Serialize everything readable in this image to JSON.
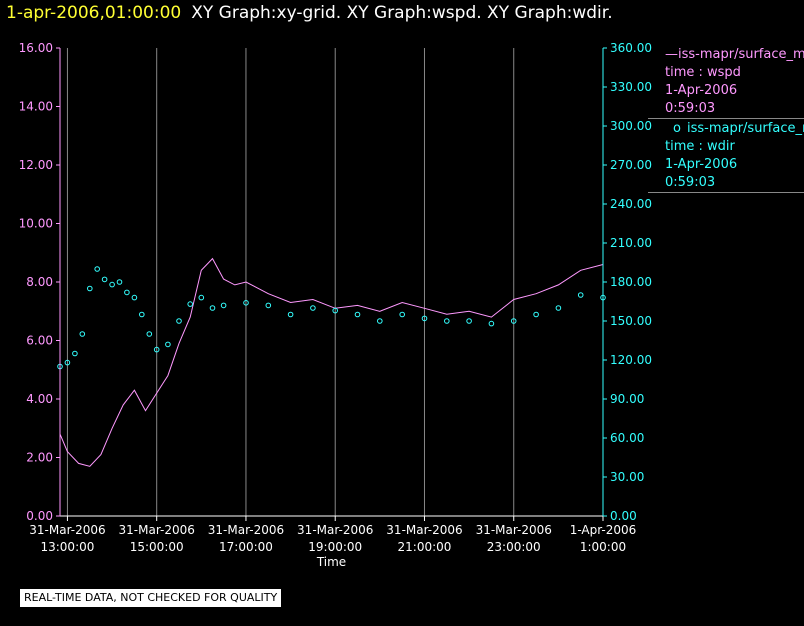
{
  "header": {
    "time": "1-apr-2006,01:00:00",
    "graphs": "XY Graph:xy-grid.  XY Graph:wspd.  XY Graph:wdir."
  },
  "legend": {
    "wspd": {
      "marker": "—",
      "name": "iss-mapr/surface_mapr",
      "line2": "time : wspd",
      "line3": "1-Apr-2006",
      "line4": "0:59:03"
    },
    "wdir": {
      "marker": "o",
      "name": "iss-mapr/surface_mapr",
      "line2": "time : wdir",
      "line3": "1-Apr-2006",
      "line4": "0:59:03"
    }
  },
  "disclaimer": "REAL-TIME DATA, NOT CHECKED FOR QUALITY",
  "colors": {
    "background": "#000000",
    "wspd": "#ff99ff",
    "wdir": "#33ffff",
    "grid": "#888888",
    "title_time": "#ffff33",
    "axis_text": "#ffffff"
  },
  "chart_data": {
    "type": "line",
    "xlabel": "Time",
    "x_range": [
      "2006-03-31T12:50:00",
      "2006-04-01T01:00:00"
    ],
    "x_ticks": [
      {
        "time": "2006-03-31T13:00:00",
        "line1": "31-Mar-2006",
        "line2": "13:00:00"
      },
      {
        "time": "2006-03-31T15:00:00",
        "line1": "31-Mar-2006",
        "line2": "15:00:00"
      },
      {
        "time": "2006-03-31T17:00:00",
        "line1": "31-Mar-2006",
        "line2": "17:00:00"
      },
      {
        "time": "2006-03-31T19:00:00",
        "line1": "31-Mar-2006",
        "line2": "19:00:00"
      },
      {
        "time": "2006-03-31T21:00:00",
        "line1": "31-Mar-2006",
        "line2": "21:00:00"
      },
      {
        "time": "2006-03-31T23:00:00",
        "line1": "31-Mar-2006",
        "line2": "23:00:00"
      },
      {
        "time": "2006-04-01T01:00:00",
        "line1": "1-Apr-2006",
        "line2": "1:00:00"
      }
    ],
    "y_left": {
      "range": [
        0,
        16
      ],
      "ticks": [
        "0.00",
        "2.00",
        "4.00",
        "6.00",
        "8.00",
        "10.00",
        "12.00",
        "14.00",
        "16.00"
      ]
    },
    "y_right": {
      "range": [
        0,
        360
      ],
      "ticks": [
        "0.00",
        "30.00",
        "60.00",
        "90.00",
        "120.00",
        "150.00",
        "180.00",
        "210.00",
        "240.00",
        "270.00",
        "300.00",
        "330.00",
        "360.00"
      ]
    },
    "grid": "vertical lines at x ticks",
    "legend_position": "right",
    "series": [
      {
        "name": "wspd",
        "axis": "left",
        "style": "line",
        "x": [
          "2006-03-31T12:50:00",
          "2006-03-31T13:00:00",
          "2006-03-31T13:15:00",
          "2006-03-31T13:30:00",
          "2006-03-31T13:45:00",
          "2006-03-31T14:00:00",
          "2006-03-31T14:15:00",
          "2006-03-31T14:30:00",
          "2006-03-31T14:45:00",
          "2006-03-31T15:00:00",
          "2006-03-31T15:15:00",
          "2006-03-31T15:30:00",
          "2006-03-31T15:45:00",
          "2006-03-31T16:00:00",
          "2006-03-31T16:15:00",
          "2006-03-31T16:30:00",
          "2006-03-31T16:45:00",
          "2006-03-31T17:00:00",
          "2006-03-31T17:30:00",
          "2006-03-31T18:00:00",
          "2006-03-31T18:30:00",
          "2006-03-31T19:00:00",
          "2006-03-31T19:30:00",
          "2006-03-31T20:00:00",
          "2006-03-31T20:30:00",
          "2006-03-31T21:00:00",
          "2006-03-31T21:30:00",
          "2006-03-31T22:00:00",
          "2006-03-31T22:30:00",
          "2006-03-31T23:00:00",
          "2006-03-31T23:30:00",
          "2006-04-01T00:00:00",
          "2006-04-01T00:30:00",
          "2006-04-01T01:00:00"
        ],
        "y": [
          2.8,
          2.2,
          1.8,
          1.7,
          2.1,
          3.0,
          3.8,
          4.3,
          3.6,
          4.2,
          4.8,
          5.9,
          6.8,
          8.4,
          8.8,
          8.1,
          7.9,
          8.0,
          7.6,
          7.3,
          7.4,
          7.1,
          7.2,
          7.0,
          7.3,
          7.1,
          6.9,
          7.0,
          6.8,
          7.4,
          7.6,
          7.9,
          8.4,
          8.6
        ]
      },
      {
        "name": "wdir",
        "axis": "right",
        "style": "markers",
        "x": [
          "2006-03-31T12:50:00",
          "2006-03-31T13:00:00",
          "2006-03-31T13:10:00",
          "2006-03-31T13:20:00",
          "2006-03-31T13:30:00",
          "2006-03-31T13:40:00",
          "2006-03-31T13:50:00",
          "2006-03-31T14:00:00",
          "2006-03-31T14:10:00",
          "2006-03-31T14:20:00",
          "2006-03-31T14:30:00",
          "2006-03-31T14:40:00",
          "2006-03-31T14:50:00",
          "2006-03-31T15:00:00",
          "2006-03-31T15:15:00",
          "2006-03-31T15:30:00",
          "2006-03-31T15:45:00",
          "2006-03-31T16:00:00",
          "2006-03-31T16:15:00",
          "2006-03-31T16:30:00",
          "2006-03-31T17:00:00",
          "2006-03-31T17:30:00",
          "2006-03-31T18:00:00",
          "2006-03-31T18:30:00",
          "2006-03-31T19:00:00",
          "2006-03-31T19:30:00",
          "2006-03-31T20:00:00",
          "2006-03-31T20:30:00",
          "2006-03-31T21:00:00",
          "2006-03-31T21:30:00",
          "2006-03-31T22:00:00",
          "2006-03-31T22:30:00",
          "2006-03-31T23:00:00",
          "2006-03-31T23:30:00",
          "2006-04-01T00:00:00",
          "2006-04-01T00:30:00",
          "2006-04-01T01:00:00"
        ],
        "y": [
          115,
          118,
          125,
          140,
          175,
          190,
          182,
          178,
          180,
          172,
          168,
          155,
          140,
          128,
          132,
          150,
          163,
          168,
          160,
          162,
          164,
          162,
          155,
          160,
          158,
          155,
          150,
          155,
          152,
          150,
          150,
          148,
          150,
          155,
          160,
          170,
          168
        ]
      }
    ]
  }
}
